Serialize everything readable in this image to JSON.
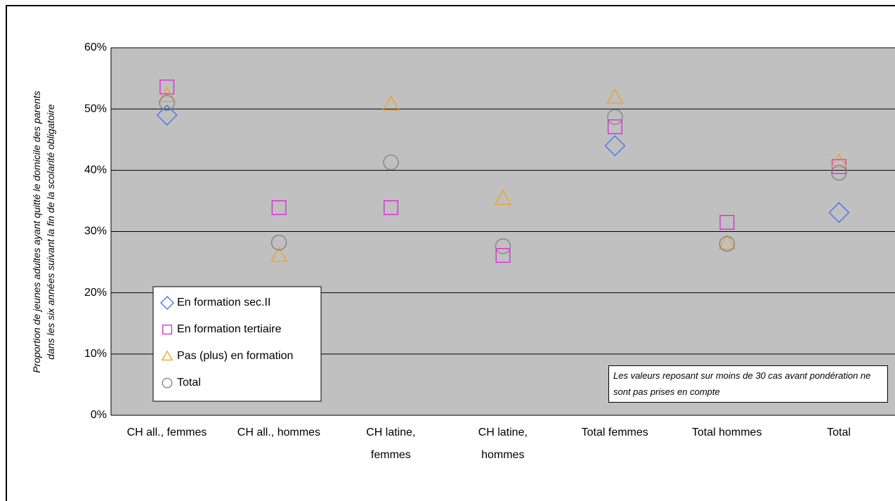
{
  "chart_data": {
    "type": "scatter",
    "y_label": "Proportion de jeunes adultes ayant quitté le domicile des parents\ndans les six années suivant la fin de la scolarité obligatoire",
    "categories": [
      "CH all., femmes",
      "CH all., hommes",
      "CH latine,\nfemmes",
      "CH latine,\nhommes",
      "Total femmes",
      "Total hommes",
      "Total"
    ],
    "series": [
      {
        "name": "En formation sec.II",
        "color": "#3f6ff0",
        "marker": "diamond",
        "values": [
          49.0,
          null,
          null,
          null,
          44.0,
          null,
          33.1
        ]
      },
      {
        "name": "En formation tertiaire",
        "color": "#e020e0",
        "marker": "square",
        "values": [
          53.6,
          33.9,
          33.9,
          26.1,
          47.1,
          31.5,
          40.6
        ]
      },
      {
        "name": "Pas (plus) en formation",
        "color": "#f0a020",
        "marker": "triangle",
        "values": [
          52.2,
          26.1,
          50.8,
          35.4,
          51.9,
          28.1,
          41.4
        ]
      },
      {
        "name": "Total",
        "color": "#7f7f7f",
        "marker": "circle",
        "values": [
          51.0,
          28.2,
          41.3,
          27.6,
          48.7,
          28.0,
          39.6
        ]
      }
    ],
    "ylim": [
      0,
      60
    ],
    "yticks": [
      {
        "value": 0,
        "label": "0%"
      },
      {
        "value": 10,
        "label": "10%"
      },
      {
        "value": 20,
        "label": "20%"
      },
      {
        "value": 30,
        "label": "30%"
      },
      {
        "value": 40,
        "label": "40%"
      },
      {
        "value": 50,
        "label": "50%"
      },
      {
        "value": 60,
        "label": "60%"
      }
    ],
    "grid": true,
    "legend": "lower-left",
    "note": "Les valeurs reposant sur moins de 30 cas avant pondération ne sont pas prises en compte"
  }
}
